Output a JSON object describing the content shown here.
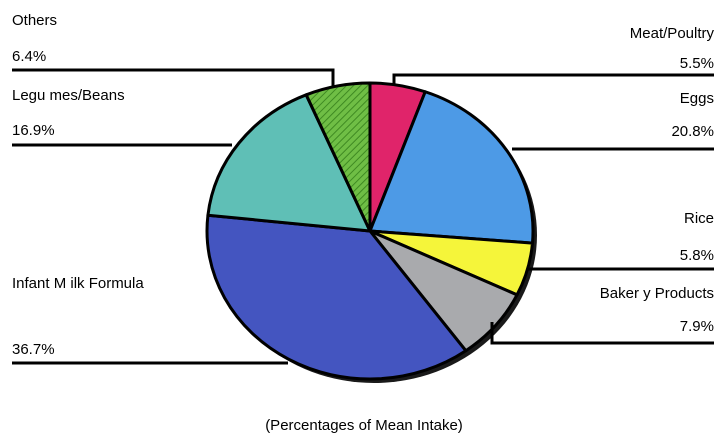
{
  "chart_data": {
    "type": "pie",
    "caption": "(Percentages of Mean Intake)",
    "slices": [
      {
        "name": "Meat/Poultry",
        "value": 5.5,
        "value_label": "5.5%",
        "color": "#e0246a"
      },
      {
        "name": "Eggs",
        "value": 20.8,
        "value_label": "20.8%",
        "color": "#4d9ae6"
      },
      {
        "name": "Rice",
        "value": 5.8,
        "value_label": "5.8%",
        "color": "#f5f53a"
      },
      {
        "name": "Baker y Products",
        "value": 7.9,
        "value_label": "7.9%",
        "color": "#a9aaad"
      },
      {
        "name": "Infant M ilk Formula",
        "value": 36.7,
        "value_label": "36.7%",
        "color": "#4455c0"
      },
      {
        "name": "Legu mes/Beans",
        "value": 16.9,
        "value_label": "16.9%",
        "color": "#5fbfb6"
      },
      {
        "name": "Others",
        "value": 6.4,
        "value_label": "6.4%",
        "color": "#6fbe45"
      }
    ],
    "start": "top",
    "direction": "clockwise",
    "legend": "none"
  }
}
